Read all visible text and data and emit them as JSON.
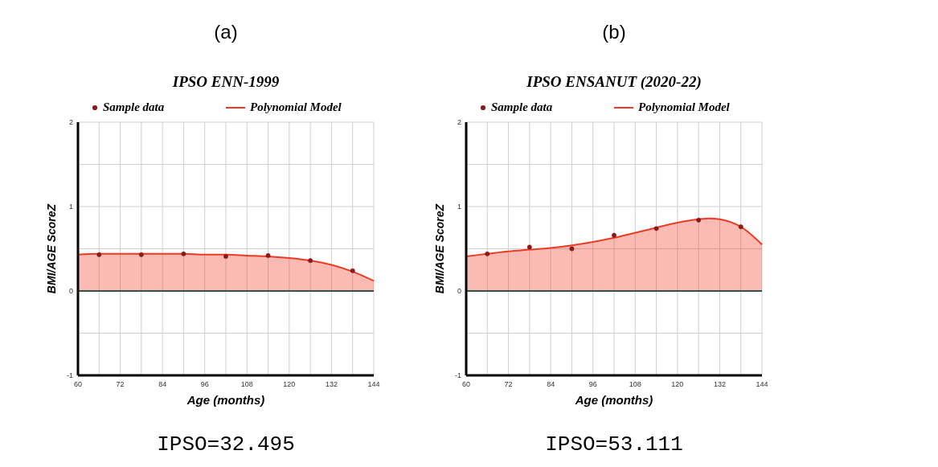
{
  "chart_data": [
    {
      "type": "scatter",
      "title": "IPSO ENN-1999",
      "xlabel": "Age (months)",
      "ylabel": "BMI/AGE ScoreZ",
      "annotations": [
        "(a)",
        "IPSO=32.495"
      ],
      "xlim": [
        60,
        144
      ],
      "ylim": [
        -1,
        2
      ],
      "xticks": [
        60,
        {
          "value": 66,
          "label": null
        },
        72,
        {
          "value": 78,
          "label": null
        },
        84,
        {
          "value": 90,
          "label": null
        },
        96,
        {
          "value": 102,
          "label": null
        },
        108,
        {
          "value": 114,
          "label": null
        },
        120,
        {
          "value": 126,
          "label": null
        },
        132,
        {
          "value": 138,
          "label": null
        },
        144
      ],
      "yticks": [
        -1,
        {
          "value": -0.5,
          "label": null
        },
        0,
        {
          "value": 0.5,
          "label": null
        },
        1,
        {
          "value": 1.5,
          "label": null
        },
        2
      ],
      "grid": true,
      "legend": "top",
      "ref_lines": [
        {
          "axis": "y",
          "value": 0,
          "color": "#2f5545"
        }
      ],
      "series": [
        {
          "name": "Sample data",
          "type": "scatter",
          "marker": "circle",
          "color": "#8b1a1a",
          "x": [
            66,
            78,
            90,
            102,
            114,
            126,
            138
          ],
          "values": [
            0.43,
            0.43,
            0.44,
            0.41,
            0.42,
            0.36,
            0.24
          ]
        },
        {
          "name": "Polynomial Model",
          "type": "area",
          "marker": "none",
          "color": "#ee3b24",
          "x": [
            60,
            66,
            72,
            78,
            84,
            90,
            96,
            102,
            108,
            114,
            120,
            126,
            132,
            138,
            144
          ],
          "values": [
            0.43,
            0.44,
            0.44,
            0.44,
            0.44,
            0.44,
            0.43,
            0.43,
            0.42,
            0.41,
            0.39,
            0.36,
            0.31,
            0.23,
            0.12
          ]
        }
      ]
    },
    {
      "type": "scatter",
      "title": "IPSO ENSANUT (2020-22)",
      "xlabel": "Age (months)",
      "ylabel": "BMI/AGE ScoreZ",
      "annotations": [
        "(b)",
        "IPSO=53.111"
      ],
      "xlim": [
        60,
        144
      ],
      "ylim": [
        -1,
        2
      ],
      "xticks": [
        60,
        {
          "value": 66,
          "label": null
        },
        72,
        {
          "value": 78,
          "label": null
        },
        84,
        {
          "value": 90,
          "label": null
        },
        96,
        {
          "value": 102,
          "label": null
        },
        108,
        {
          "value": 114,
          "label": null
        },
        120,
        {
          "value": 126,
          "label": null
        },
        132,
        {
          "value": 138,
          "label": null
        },
        144
      ],
      "yticks": [
        -1,
        {
          "value": -0.5,
          "label": null
        },
        0,
        {
          "value": 0.5,
          "label": null
        },
        1,
        {
          "value": 1.5,
          "label": null
        },
        2
      ],
      "grid": true,
      "legend": "top",
      "ref_lines": [
        {
          "axis": "y",
          "value": 0,
          "color": "#2f5545"
        }
      ],
      "series": [
        {
          "name": "Sample data",
          "type": "scatter",
          "marker": "circle",
          "color": "#8b1a1a",
          "x": [
            66,
            78,
            90,
            102,
            114,
            126,
            138
          ],
          "values": [
            0.44,
            0.52,
            0.5,
            0.66,
            0.74,
            0.84,
            0.76
          ]
        },
        {
          "name": "Polynomial Model",
          "type": "area",
          "marker": "none",
          "color": "#ee3b24",
          "x": [
            60,
            66,
            72,
            78,
            84,
            90,
            96,
            102,
            108,
            114,
            120,
            126,
            129,
            132,
            138,
            144
          ],
          "values": [
            0.41,
            0.44,
            0.47,
            0.49,
            0.51,
            0.54,
            0.58,
            0.63,
            0.69,
            0.75,
            0.81,
            0.85,
            0.86,
            0.85,
            0.76,
            0.55
          ]
        }
      ]
    }
  ]
}
